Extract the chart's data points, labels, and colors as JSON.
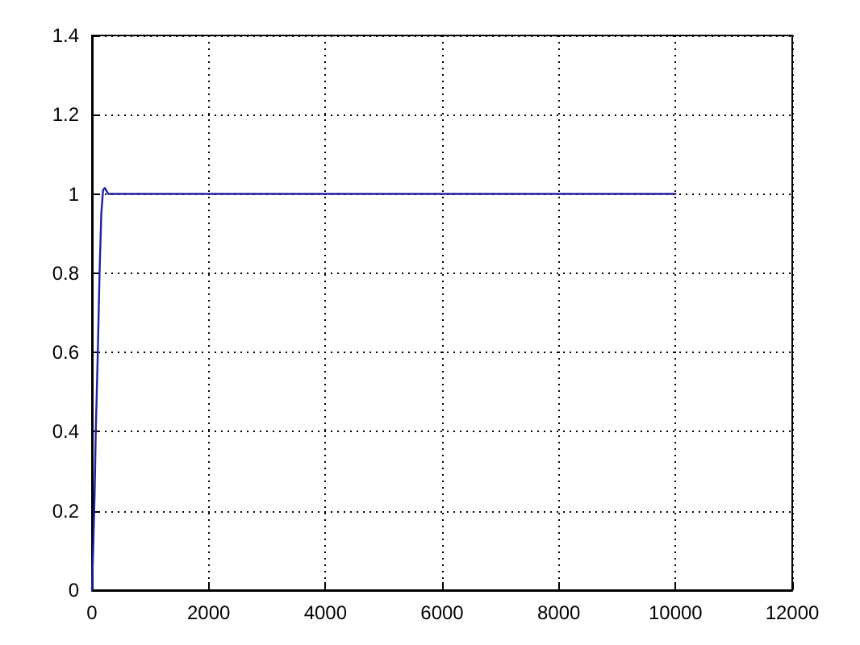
{
  "chart_data": {
    "type": "line",
    "x": [
      0,
      20,
      45,
      65,
      100,
      130,
      160,
      190,
      220,
      280,
      400,
      10000
    ],
    "values": [
      0,
      0.1,
      0.24,
      0.4,
      0.6,
      0.8,
      0.95,
      1.01,
      1.015,
      1,
      1,
      1
    ],
    "color": "#2020a0",
    "xlim": [
      0,
      12000
    ],
    "xticks": [
      0,
      2000,
      4000,
      6000,
      8000,
      10000,
      12000
    ],
    "ylim": [
      0,
      1.4
    ],
    "yticks": [
      0,
      0.2,
      0.4,
      0.6,
      0.8,
      1,
      1.2,
      1.4
    ],
    "grid": true,
    "marker": "none",
    "line_style": "solid"
  }
}
